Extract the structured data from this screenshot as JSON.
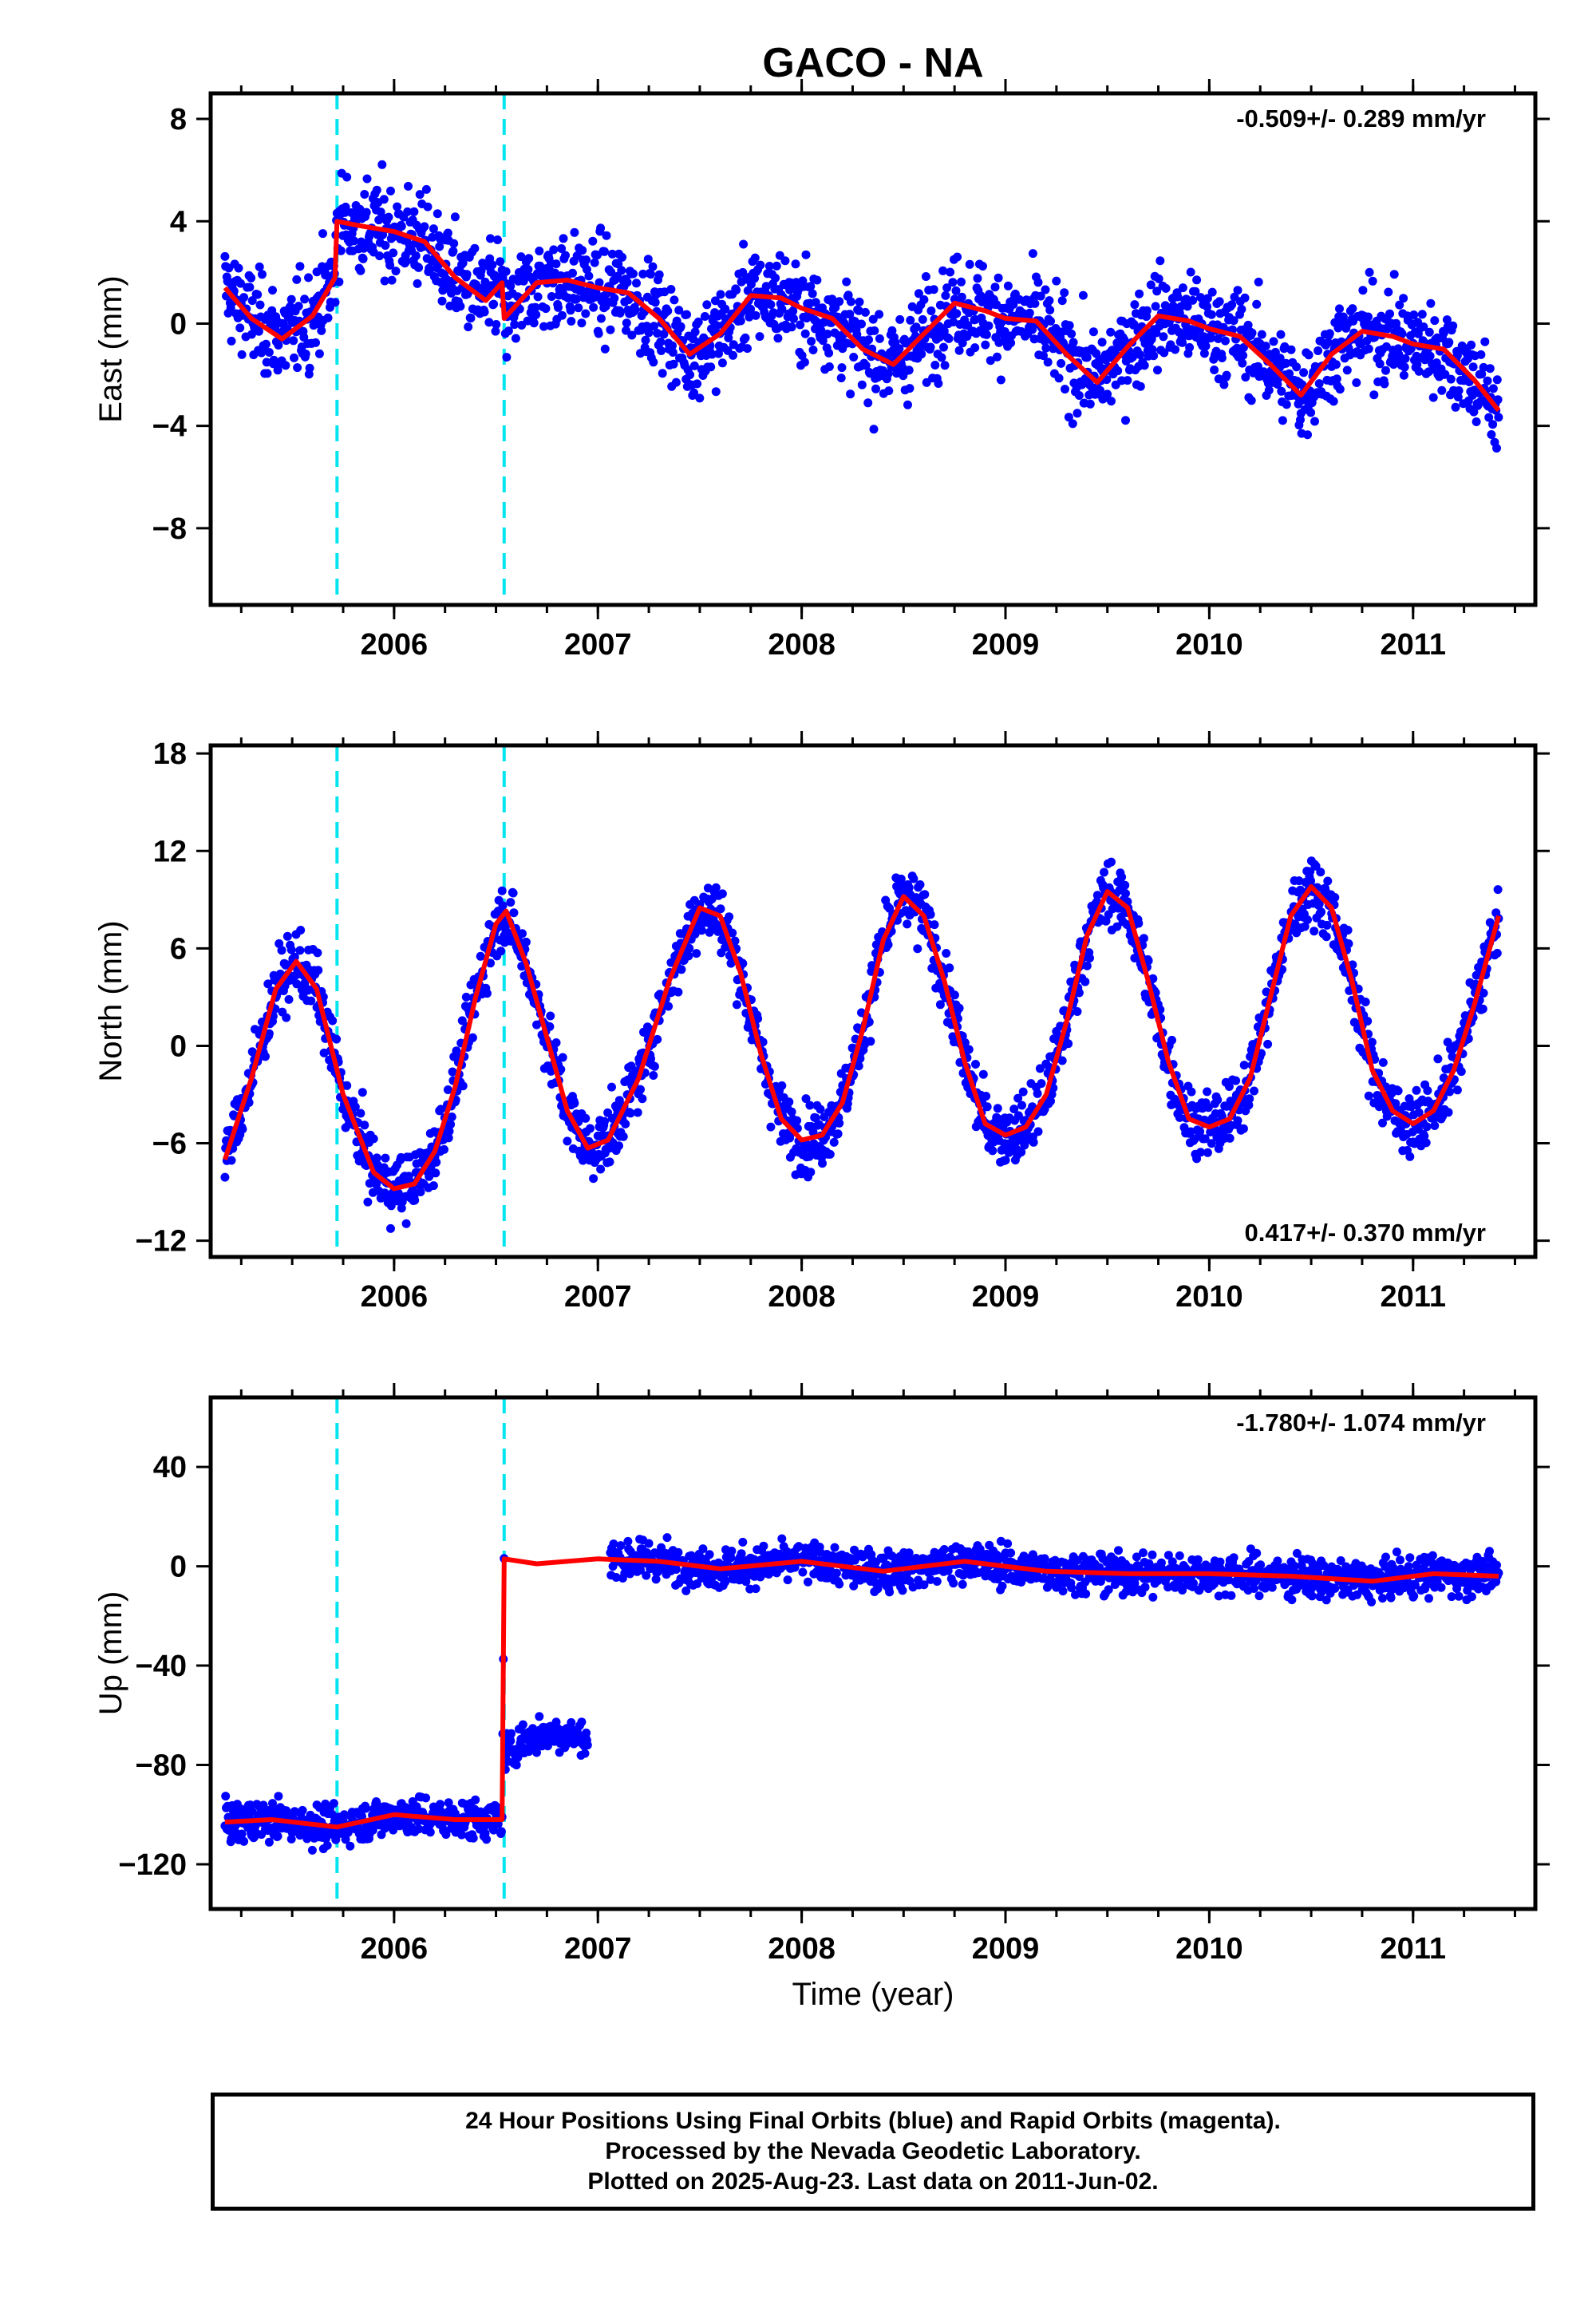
{
  "title": "GACO - NA",
  "xlabel": "Time (year)",
  "footer": {
    "line1": "24 Hour Positions Using Final Orbits (blue) and Rapid Orbits (magenta).",
    "line2": "Processed by the Nevada Geodetic Laboratory.",
    "line3": "Plotted on 2025-Aug-23. Last data on 2011-Jun-02."
  },
  "colors": {
    "data": "#0000ff",
    "model": "#ff0000",
    "offset": "#00e5ee",
    "frame": "#000000"
  },
  "chart_data": [
    {
      "type": "scatter",
      "panel": "east",
      "ylabel": "East (mm)",
      "rate_text": "-0.509+/- 0.289 mm/yr",
      "rate_position": "top-right",
      "xlim": [
        2005.1,
        2011.6
      ],
      "ylim": [
        -11,
        9
      ],
      "x_ticks": [
        2006,
        2007,
        2008,
        2009,
        2010,
        2011
      ],
      "y_ticks": [
        8,
        4,
        0,
        -4,
        -8
      ],
      "y_tick_labels": [
        "8",
        "4",
        "0",
        "−4",
        "−8"
      ],
      "offset_lines": [
        2005.72,
        2006.54
      ],
      "model": {
        "x": [
          2005.17,
          2005.3,
          2005.45,
          2005.6,
          2005.71,
          2005.72,
          2005.85,
          2006.0,
          2006.15,
          2006.3,
          2006.45,
          2006.53,
          2006.54,
          2006.7,
          2006.85,
          2007.0,
          2007.15,
          2007.3,
          2007.45,
          2007.6,
          2007.75,
          2007.9,
          2008.0,
          2008.15,
          2008.3,
          2008.45,
          2008.6,
          2008.75,
          2008.9,
          2009.0,
          2009.15,
          2009.3,
          2009.45,
          2009.6,
          2009.75,
          2009.9,
          2010.0,
          2010.15,
          2010.3,
          2010.45,
          2010.6,
          2010.75,
          2010.9,
          2011.0,
          2011.15,
          2011.3,
          2011.42
        ],
        "y": [
          1.4,
          0.2,
          -0.6,
          0.3,
          1.8,
          4.0,
          3.8,
          3.6,
          3.2,
          1.8,
          0.9,
          1.6,
          0.2,
          1.6,
          1.7,
          1.4,
          1.2,
          0.2,
          -1.2,
          -0.4,
          1.1,
          1.0,
          0.6,
          0.2,
          -1.0,
          -1.6,
          -0.4,
          0.8,
          0.5,
          0.2,
          0.1,
          -1.2,
          -2.3,
          -0.9,
          0.3,
          0.1,
          -0.2,
          -0.5,
          -1.6,
          -2.8,
          -1.2,
          -0.3,
          -0.5,
          -0.8,
          -1.0,
          -2.2,
          -3.4
        ]
      }
    },
    {
      "type": "scatter",
      "panel": "north",
      "ylabel": "North (mm)",
      "rate_text": "0.417+/- 0.370 mm/yr",
      "rate_position": "bottom-right",
      "xlim": [
        2005.1,
        2011.6
      ],
      "ylim": [
        -13,
        18.5
      ],
      "x_ticks": [
        2006,
        2007,
        2008,
        2009,
        2010,
        2011
      ],
      "y_ticks": [
        18,
        12,
        6,
        0,
        -6,
        -12
      ],
      "y_tick_labels": [
        "18",
        "12",
        "6",
        "0",
        "−6",
        "−12"
      ],
      "offset_lines": [
        2005.72,
        2006.54
      ],
      "model": {
        "x": [
          2005.17,
          2005.3,
          2005.42,
          2005.52,
          2005.62,
          2005.75,
          2005.9,
          2006.0,
          2006.1,
          2006.2,
          2006.3,
          2006.4,
          2006.5,
          2006.55,
          2006.65,
          2006.75,
          2006.85,
          2006.95,
          2007.05,
          2007.2,
          2007.35,
          2007.5,
          2007.6,
          2007.7,
          2007.8,
          2007.9,
          2008.0,
          2008.1,
          2008.2,
          2008.3,
          2008.4,
          2008.5,
          2008.6,
          2008.7,
          2008.8,
          2008.9,
          2009.0,
          2009.1,
          2009.2,
          2009.3,
          2009.4,
          2009.5,
          2009.6,
          2009.7,
          2009.8,
          2009.9,
          2010.0,
          2010.1,
          2010.2,
          2010.3,
          2010.4,
          2010.5,
          2010.6,
          2010.7,
          2010.8,
          2010.9,
          2011.0,
          2011.1,
          2011.2,
          2011.3,
          2011.42
        ],
        "y": [
          -7,
          -2,
          3.5,
          5.2,
          3.5,
          -3.0,
          -7.8,
          -8.8,
          -8.5,
          -6.5,
          -2.5,
          3.0,
          7.5,
          8.3,
          5.0,
          0.5,
          -4.0,
          -6.3,
          -5.8,
          -2.0,
          4.0,
          8.5,
          8.0,
          4.5,
          -0.5,
          -4.5,
          -5.8,
          -5.5,
          -3.5,
          1.0,
          6.5,
          9.2,
          8.0,
          4.0,
          -1.0,
          -4.8,
          -5.5,
          -5.0,
          -3.0,
          1.5,
          6.8,
          9.5,
          8.5,
          4.0,
          -1.0,
          -4.5,
          -5.0,
          -4.5,
          -2.0,
          3.0,
          8.0,
          9.8,
          8.5,
          4.0,
          -1.5,
          -4.0,
          -4.8,
          -4.0,
          -1.5,
          2.5,
          8.0
        ]
      }
    },
    {
      "type": "scatter",
      "panel": "up",
      "ylabel": "Up (mm)",
      "rate_text": "-1.780+/- 1.074 mm/yr",
      "rate_position": "top-right",
      "xlim": [
        2005.1,
        2011.6
      ],
      "ylim": [
        -138,
        68
      ],
      "x_ticks": [
        2006,
        2007,
        2008,
        2009,
        2010,
        2011
      ],
      "x_tick_labels": [
        "2006",
        "2007",
        "2008",
        "2009",
        "2010",
        "2011"
      ],
      "y_ticks": [
        40,
        0,
        -40,
        -80,
        -120
      ],
      "y_tick_labels": [
        "40",
        "0",
        "−40",
        "−80",
        "−120"
      ],
      "offset_lines": [
        2005.72,
        2006.54
      ],
      "model": {
        "x": [
          2005.17,
          2005.4,
          2005.72,
          2006.0,
          2006.3,
          2006.53,
          2006.54,
          2006.7,
          2007.0,
          2007.3,
          2007.6,
          2008.0,
          2008.4,
          2008.8,
          2009.2,
          2009.6,
          2010.0,
          2010.4,
          2010.8,
          2011.1,
          2011.42
        ],
        "y": [
          -103,
          -102,
          -105,
          -100,
          -102,
          -102,
          3,
          1,
          3,
          2,
          -1,
          2,
          -2,
          2,
          -2,
          -3,
          -3,
          -4,
          -6,
          -3,
          -4
        ]
      }
    }
  ]
}
